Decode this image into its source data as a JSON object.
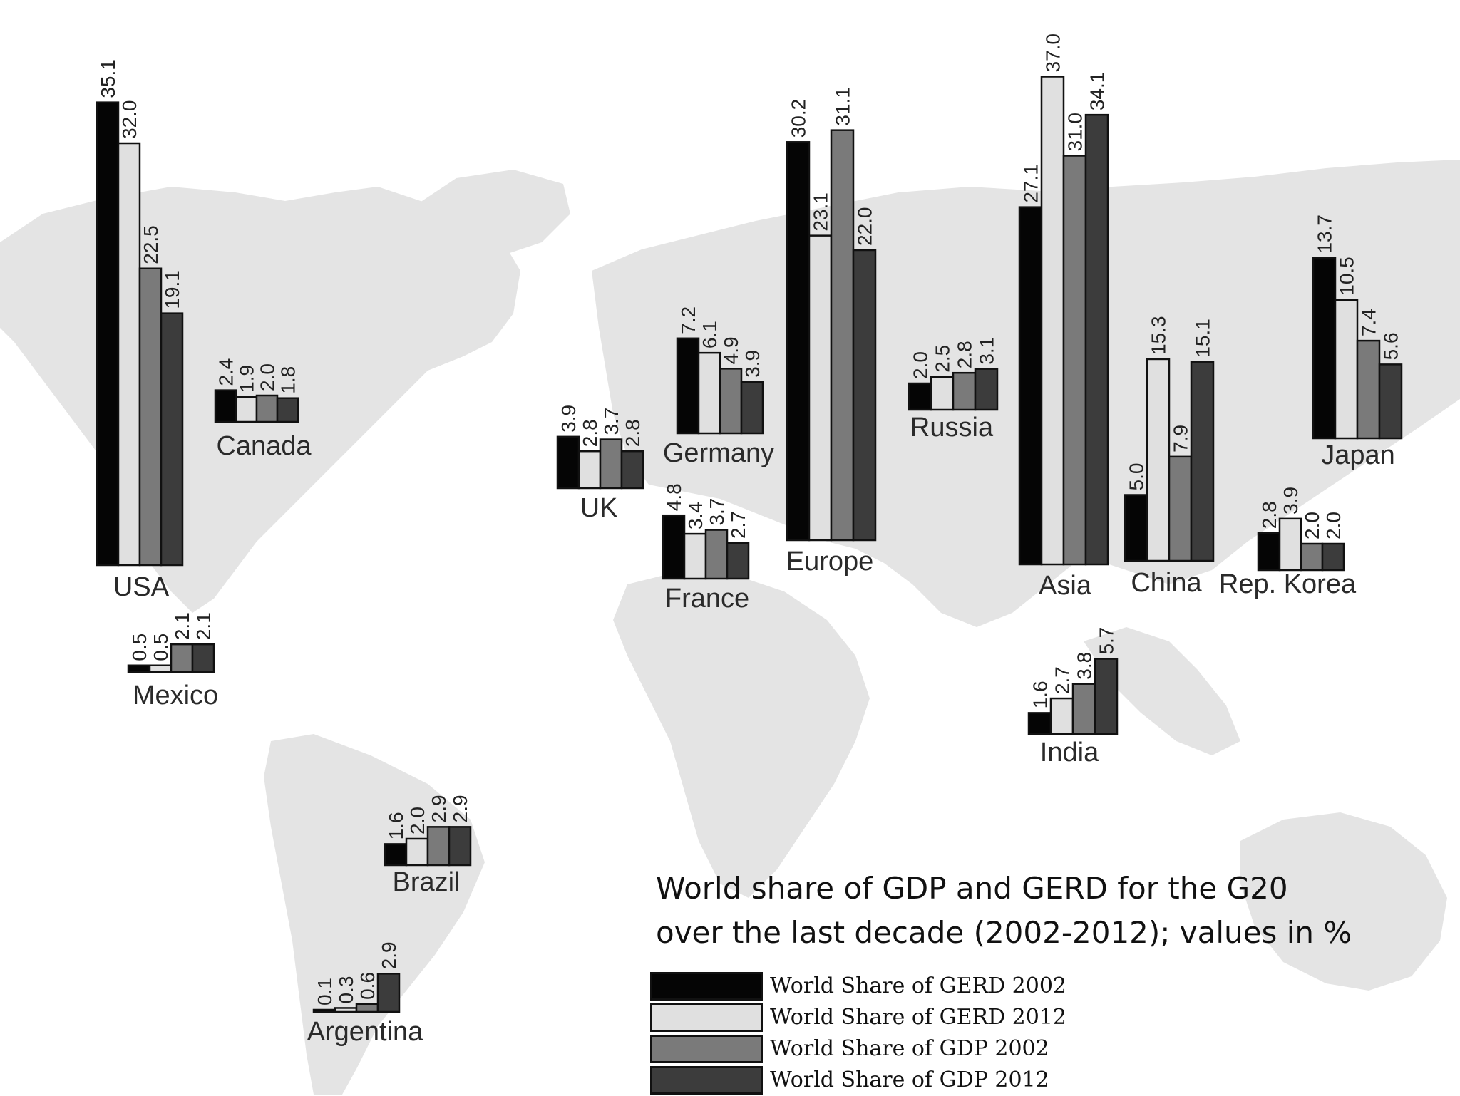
{
  "caption": {
    "line1": "World share of GDP and GERD for the G20",
    "line2": "over the last decade (2002-2012); values in %"
  },
  "colors": {
    "gerd_2002": "#050505",
    "gerd_2012": "#e0e0e0",
    "gdp_2002": "#7a7a7a",
    "gdp_2012": "#3c3c3c",
    "map": "#e4e4e4"
  },
  "chart_data": {
    "type": "bar",
    "grid": false,
    "legend_position": "bottom-right",
    "series": [
      {
        "name": "World Share of GERD 2002",
        "color": "#050505"
      },
      {
        "name": "World Share of GERD 2012",
        "color": "#e0e0e0"
      },
      {
        "name": "World Share of GDP 2002",
        "color": "#7a7a7a"
      },
      {
        "name": "World Share of GDP 2012",
        "color": "#3c3c3c"
      }
    ],
    "groups": [
      {
        "label": "USA",
        "values": [
          35.1,
          32.0,
          22.5,
          19.1
        ],
        "value_labels": [
          "35.1",
          "32.0",
          "22.5",
          "19.1"
        ]
      },
      {
        "label": "Canada",
        "values": [
          2.4,
          1.9,
          2.0,
          1.8
        ],
        "value_labels": [
          "2.4",
          "1.9",
          "2.0",
          "1.8"
        ]
      },
      {
        "label": "Mexico",
        "values": [
          0.5,
          0.5,
          2.1,
          2.1
        ],
        "value_labels": [
          "0.5",
          "0.5",
          "2.1",
          "2.1"
        ]
      },
      {
        "label": "Brazil",
        "values": [
          1.6,
          2.0,
          2.9,
          2.9
        ],
        "value_labels": [
          "1.6",
          "2.0",
          "2.9",
          "2.9"
        ]
      },
      {
        "label": "Argentina",
        "values": [
          0.1,
          0.3,
          0.6,
          2.9
        ],
        "value_labels": [
          "0.1",
          "0.3",
          "0.6",
          "2.9"
        ]
      },
      {
        "label": "UK",
        "values": [
          3.9,
          2.8,
          3.7,
          2.8
        ],
        "value_labels": [
          "3.9",
          "2.8",
          "3.7",
          "2.8"
        ]
      },
      {
        "label": "Germany",
        "values": [
          7.2,
          6.1,
          4.9,
          3.9
        ],
        "value_labels": [
          "7.2",
          "6.1",
          "4.9",
          "3.9"
        ]
      },
      {
        "label": "France",
        "values": [
          4.8,
          3.4,
          3.7,
          2.7
        ],
        "value_labels": [
          "4.8",
          "3.4",
          "3.7",
          "2.7"
        ]
      },
      {
        "label": "Europe",
        "values": [
          30.2,
          23.1,
          31.1,
          22.0
        ],
        "value_labels": [
          "30.2",
          "23.1",
          "31.1",
          "22.0"
        ]
      },
      {
        "label": "Russia",
        "values": [
          2.0,
          2.5,
          2.8,
          3.1
        ],
        "value_labels": [
          "2.0",
          "2.5",
          "2.8",
          "3.1"
        ]
      },
      {
        "label": "Asia",
        "values": [
          27.1,
          37.0,
          31.0,
          34.1
        ],
        "value_labels": [
          "27.1",
          "37.0",
          "31.0",
          "34.1"
        ]
      },
      {
        "label": "China",
        "values": [
          5.0,
          15.3,
          7.9,
          15.1
        ],
        "value_labels": [
          "5.0",
          "15.3",
          "7.9",
          "15.1"
        ]
      },
      {
        "label": "India",
        "values": [
          1.6,
          2.7,
          3.8,
          5.7
        ],
        "value_labels": [
          "1.6",
          "2.7",
          "3.8",
          "5.7"
        ]
      },
      {
        "label": "Japan",
        "values": [
          13.7,
          10.5,
          7.4,
          5.6
        ],
        "value_labels": [
          "13.7",
          "10.5",
          "7.4",
          "5.6"
        ]
      },
      {
        "label": "Rep. Korea",
        "values": [
          2.8,
          3.9,
          2.0,
          2.0
        ],
        "value_labels": [
          "2.8",
          "3.9",
          "2.0",
          "2.0"
        ]
      }
    ]
  }
}
